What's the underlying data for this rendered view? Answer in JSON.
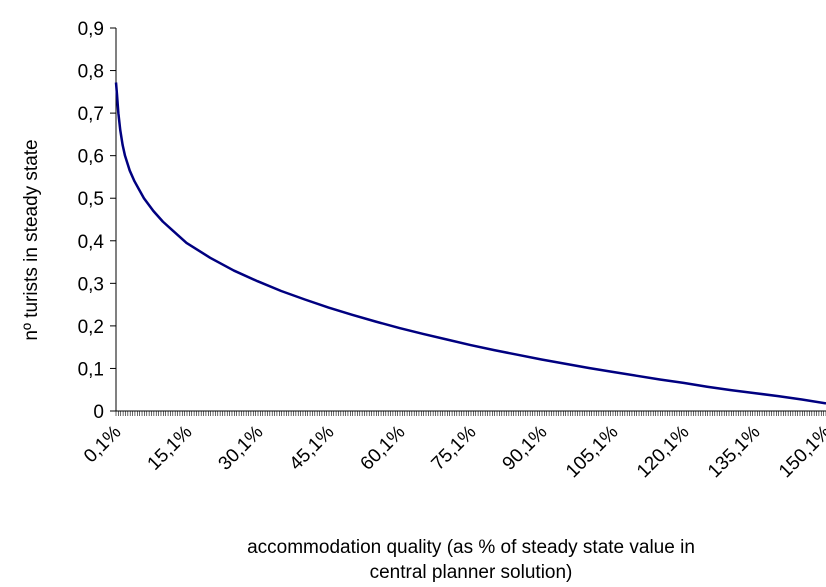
{
  "chart_data": {
    "type": "line",
    "title": "",
    "xlabel": "accommodation quality (as % of steady state value in central planner solution)",
    "xlabel_lines": [
      "accommodation quality (as % of steady state value in",
      "central planner solution)"
    ],
    "ylabel": "nº turists in steady state",
    "ylim": [
      0,
      0.9
    ],
    "xlim": [
      0.1,
      150.1
    ],
    "grid": false,
    "legend": "none",
    "x_tick_labels": [
      "0,1%",
      "15,1%",
      "30,1%",
      "45,1%",
      "60,1%",
      "75,1%",
      "90,1%",
      "105,1%",
      "120,1%",
      "135,1%",
      "150,1%"
    ],
    "x_ticks": [
      0.1,
      15.1,
      30.1,
      45.1,
      60.1,
      75.1,
      90.1,
      105.1,
      120.1,
      135.1,
      150.1
    ],
    "y_tick_labels": [
      "0",
      "0,1",
      "0,2",
      "0,3",
      "0,4",
      "0,5",
      "0,6",
      "0,7",
      "0,8",
      "0,9"
    ],
    "y_ticks": [
      0,
      0.1,
      0.2,
      0.3,
      0.4,
      0.5,
      0.6,
      0.7,
      0.8,
      0.9
    ],
    "line_color": "#000080",
    "series": [
      {
        "x": [
          0.1,
          0.3,
          0.6,
          1,
          1.5,
          2,
          3,
          4,
          5,
          6,
          7,
          8,
          10,
          12,
          15,
          20,
          25,
          30,
          35,
          40,
          45,
          50,
          55,
          60,
          65,
          70,
          75,
          80,
          85,
          90,
          95,
          100,
          105,
          110,
          115,
          120,
          125,
          130,
          135,
          140,
          145,
          150.1
        ],
        "y": [
          0.772,
          0.745,
          0.7,
          0.66,
          0.625,
          0.6,
          0.565,
          0.54,
          0.52,
          0.5,
          0.485,
          0.47,
          0.445,
          0.425,
          0.395,
          0.36,
          0.33,
          0.305,
          0.282,
          0.262,
          0.243,
          0.226,
          0.21,
          0.195,
          0.181,
          0.168,
          0.155,
          0.143,
          0.132,
          0.121,
          0.111,
          0.101,
          0.092,
          0.083,
          0.074,
          0.066,
          0.057,
          0.049,
          0.042,
          0.035,
          0.027,
          0.018
        ]
      }
    ]
  }
}
